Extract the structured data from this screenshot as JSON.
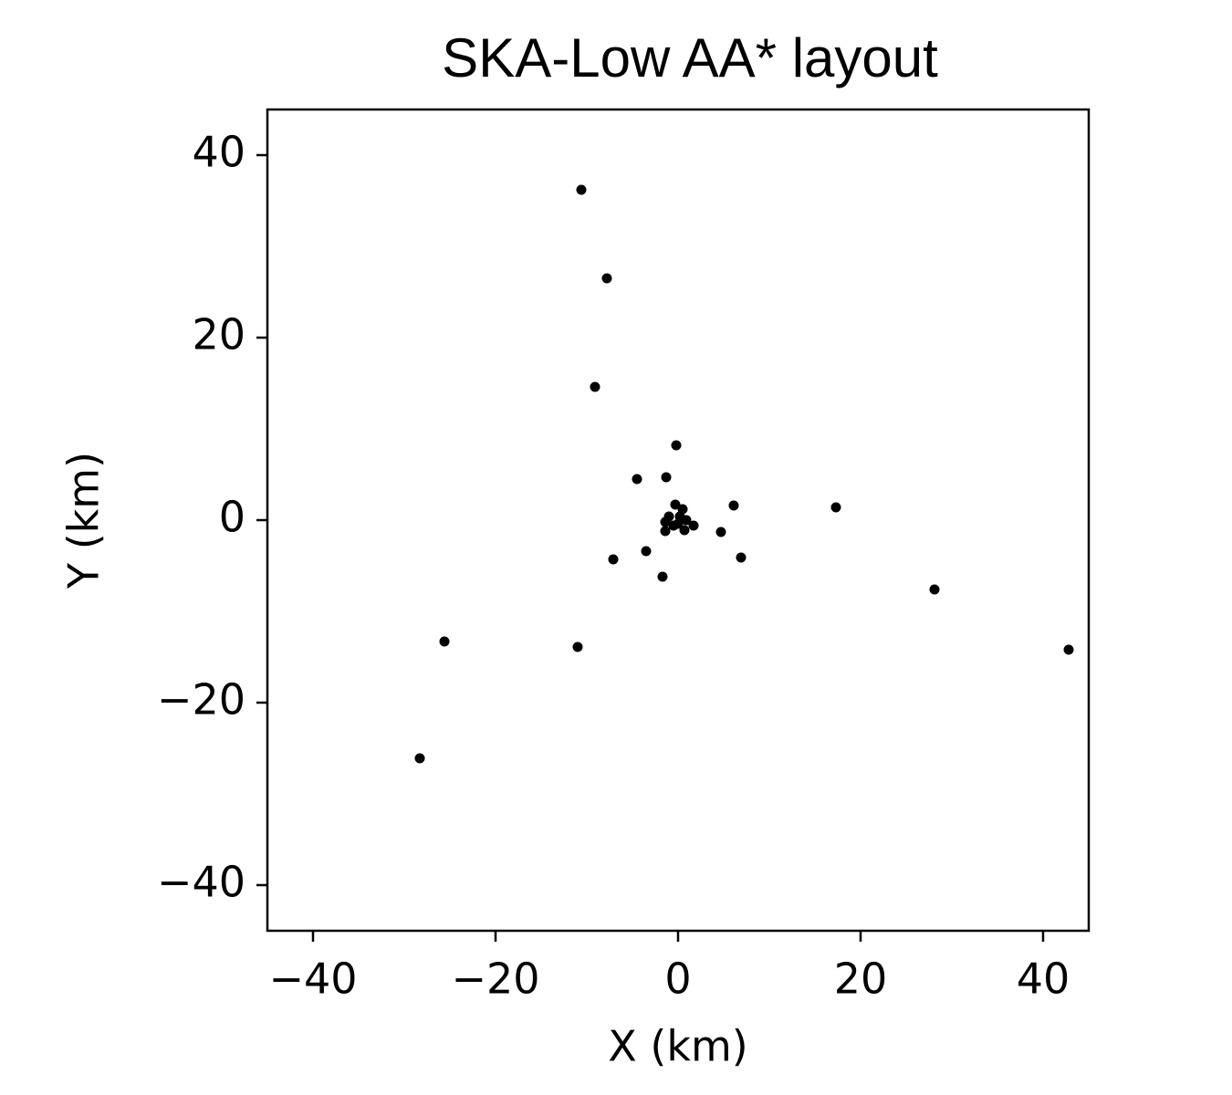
{
  "chart_data": {
    "type": "scatter",
    "title": "SKA-Low AA* layout",
    "x_label": "X (km)",
    "y_label": "Y (km)",
    "color": "#000000",
    "x": [
      -10.6,
      -7.8,
      -9.1,
      -0.2,
      -4.5,
      -1.3,
      6.1,
      17.3,
      -0.3,
      0.5,
      -1.0,
      0.2,
      0.9,
      -1.4,
      -0.5,
      0.0,
      1.7,
      0.7,
      -1.4,
      4.7,
      -3.5,
      -7.1,
      6.9,
      -1.7,
      28.1,
      -11.0,
      -25.6,
      42.8,
      -28.3
    ],
    "y": [
      36.2,
      26.5,
      14.6,
      8.2,
      4.5,
      4.7,
      1.6,
      1.4,
      1.7,
      1.2,
      0.4,
      0.4,
      0.0,
      -0.2,
      -0.6,
      -0.4,
      -0.6,
      -1.1,
      -1.2,
      -1.3,
      -3.4,
      -4.3,
      -4.1,
      -6.2,
      -7.6,
      -13.9,
      -13.3,
      -14.2,
      -26.1
    ],
    "xlim": [
      -45,
      45
    ],
    "ylim": [
      -45,
      45
    ],
    "xticks": [
      {
        "value": -40,
        "label": "−40"
      },
      {
        "value": -20,
        "label": "−20"
      },
      0,
      20,
      40
    ],
    "yticks": [
      {
        "value": -40,
        "label": "−40"
      },
      {
        "value": -20,
        "label": "−20"
      },
      0,
      20,
      40
    ],
    "grid": false
  }
}
